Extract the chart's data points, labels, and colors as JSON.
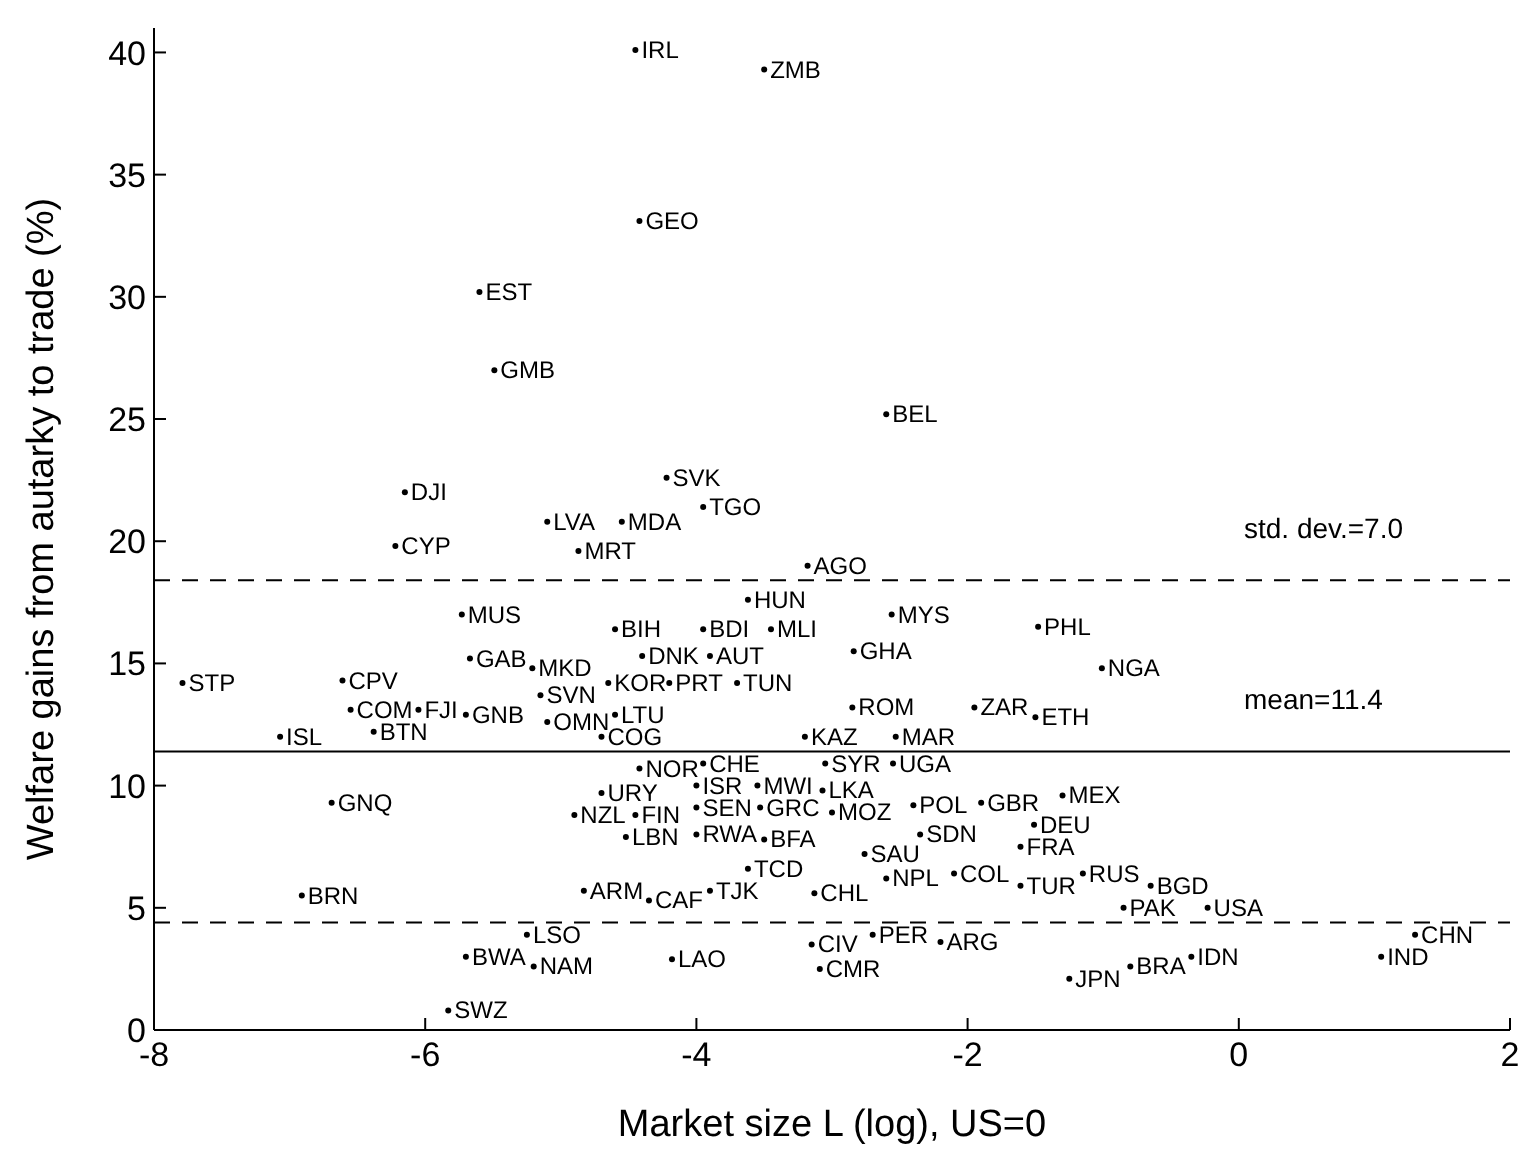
{
  "chart_data": {
    "type": "scatter",
    "xlabel": "Market size L (log), US=0",
    "ylabel": "Welfare gains from autarky to trade (%)",
    "xlim": [
      -8,
      2
    ],
    "xticks": [
      -8,
      -6,
      -4,
      -2,
      0,
      2
    ],
    "ylim": [
      0,
      41
    ],
    "yticks": [
      0,
      5,
      10,
      15,
      20,
      25,
      30,
      35,
      40
    ],
    "grid": false,
    "legend": false,
    "marker": "circle",
    "series": [
      {
        "color": "#000000",
        "x": [
          -4.45,
          -3.5,
          -4.42,
          -5.6,
          -5.49,
          -2.6,
          -6.15,
          -4.22,
          -3.95,
          -5.1,
          -4.55,
          -4.87,
          -6.22,
          -3.18,
          -3.62,
          -3.95,
          -3.45,
          -2.56,
          -1.48,
          -5.73,
          -4.6,
          -5.67,
          -4.4,
          -3.9,
          -2.84,
          -1.01,
          -7.79,
          -6.61,
          -5.21,
          -5.15,
          -4.65,
          -4.2,
          -3.7,
          -6.55,
          -6.05,
          -5.7,
          -5.1,
          -4.6,
          -2.85,
          -1.95,
          -1.5,
          -6.38,
          -7.07,
          -2.53,
          -3.2,
          -4.7,
          -3.95,
          -3.05,
          -2.55,
          -4.42,
          -4.0,
          -3.55,
          -4.7,
          -6.69,
          -1.3,
          -3.53,
          -3.07,
          -3.0,
          -2.4,
          -1.9,
          -1.51,
          -4.9,
          -4.45,
          -4.0,
          -4.52,
          -4.0,
          -3.5,
          -2.35,
          -1.61,
          -2.76,
          -3.62,
          -4.83,
          -4.35,
          -3.9,
          -2.6,
          -3.13,
          -2.1,
          -1.61,
          -6.91,
          -1.15,
          -0.65,
          -0.85,
          -0.23,
          -2.2,
          -2.7,
          1.3,
          1.05,
          -0.35,
          -0.8,
          -1.25,
          -5.25,
          -5.7,
          -5.2,
          -4.18,
          -3.15,
          -3.09,
          -5.83
        ],
        "values": [
          40.1,
          39.3,
          33.1,
          30.2,
          27.0,
          25.2,
          22.0,
          22.6,
          21.4,
          20.8,
          20.8,
          19.6,
          19.8,
          19.0,
          17.6,
          16.4,
          16.4,
          17.0,
          16.5,
          17.0,
          16.4,
          15.2,
          15.3,
          15.3,
          15.5,
          14.8,
          14.2,
          14.3,
          14.8,
          13.7,
          14.2,
          14.2,
          14.2,
          13.1,
          13.1,
          12.9,
          12.6,
          12.9,
          13.2,
          13.2,
          12.8,
          12.2,
          12.0,
          12.0,
          12.0,
          12.0,
          10.9,
          10.9,
          10.9,
          10.7,
          10.0,
          10.0,
          9.7,
          9.3,
          9.6,
          9.1,
          9.8,
          8.9,
          9.2,
          9.3,
          8.4,
          8.8,
          8.8,
          9.1,
          7.9,
          8.0,
          7.8,
          8.0,
          7.5,
          7.2,
          6.6,
          5.7,
          5.3,
          5.7,
          6.2,
          5.6,
          6.4,
          5.9,
          5.5,
          6.4,
          5.9,
          5.0,
          5.0,
          3.6,
          3.9,
          3.9,
          3.0,
          3.0,
          2.6,
          2.1,
          3.9,
          3.0,
          2.6,
          2.9,
          3.5,
          2.5,
          0.8
        ],
        "value_labels": [
          "IRL",
          "ZMB",
          "GEO",
          "EST",
          "GMB",
          "BEL",
          "DJI",
          "SVK",
          "TGO",
          "LVA",
          "MDA",
          "MRT",
          "CYP",
          "AGO",
          "HUN",
          "BDI",
          "MLI",
          "MYS",
          "PHL",
          "MUS",
          "BIH",
          "GAB",
          "DNK",
          "AUT",
          "GHA",
          "NGA",
          "STP",
          "CPV",
          "MKD",
          "SVN",
          "KOR",
          "PRT",
          "TUN",
          "COM",
          "FJI",
          "GNB",
          "OMN",
          "LTU",
          "ROM",
          "ZAR",
          "ETH",
          "BTN",
          "ISL",
          "MAR",
          "KAZ",
          "COG",
          "CHE",
          "SYR",
          "UGA",
          "NOR",
          "ISR",
          "MWI",
          "URY",
          "GNQ",
          "MEX",
          "GRC",
          "LKA",
          "MOZ",
          "POL",
          "GBR",
          "DEU",
          "NZL",
          "FIN",
          "SEN",
          "LBN",
          "RWA",
          "BFA",
          "SDN",
          "FRA",
          "SAU",
          "TCD",
          "ARM",
          "CAF",
          "TJK",
          "NPL",
          "CHL",
          "COL",
          "TUR",
          "BRN",
          "RUS",
          "BGD",
          "PAK",
          "USA",
          "ARG",
          "PER",
          "CHN",
          "IND",
          "IDN",
          "BRA",
          "JPN",
          "LSO",
          "BWA",
          "NAM",
          "LAO",
          "CIV",
          "CMR",
          "SWZ"
        ]
      }
    ],
    "ref_lines": [
      {
        "axis": "y",
        "value": 11.4,
        "line_style": "solid",
        "color": "#000000",
        "label": "mean=11.4"
      },
      {
        "axis": "y",
        "value": 18.4,
        "line_style": "dashed",
        "color": "#000000"
      },
      {
        "axis": "y",
        "value": 4.4,
        "line_style": "dashed",
        "color": "#000000"
      }
    ],
    "annotations": [
      "std. dev.=7.0"
    ]
  }
}
